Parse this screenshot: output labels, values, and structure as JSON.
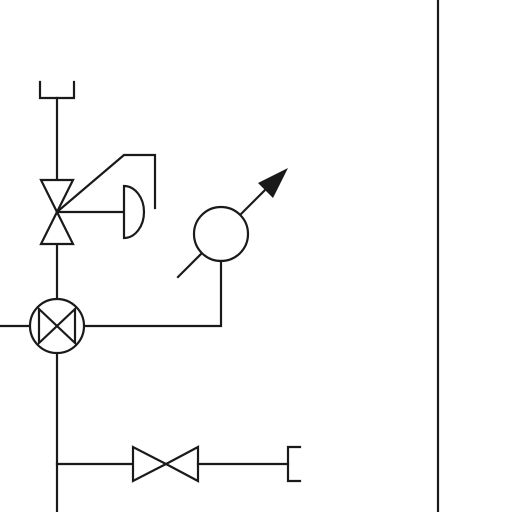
{
  "diagram": {
    "kind": "piping-and-instrumentation-schematic",
    "colors": {
      "background": "#ffffff",
      "stroke": "#1a1a1a"
    },
    "symbols": [
      "open-end-cap-top",
      "diaphragm-actuated-control-valve",
      "diaphragm-actuator",
      "rotary-instrument-with-adjustment-arrow",
      "mixing-valve-circle-x",
      "gate-valve",
      "open-end-cap-right",
      "vertical-border-line"
    ]
  }
}
